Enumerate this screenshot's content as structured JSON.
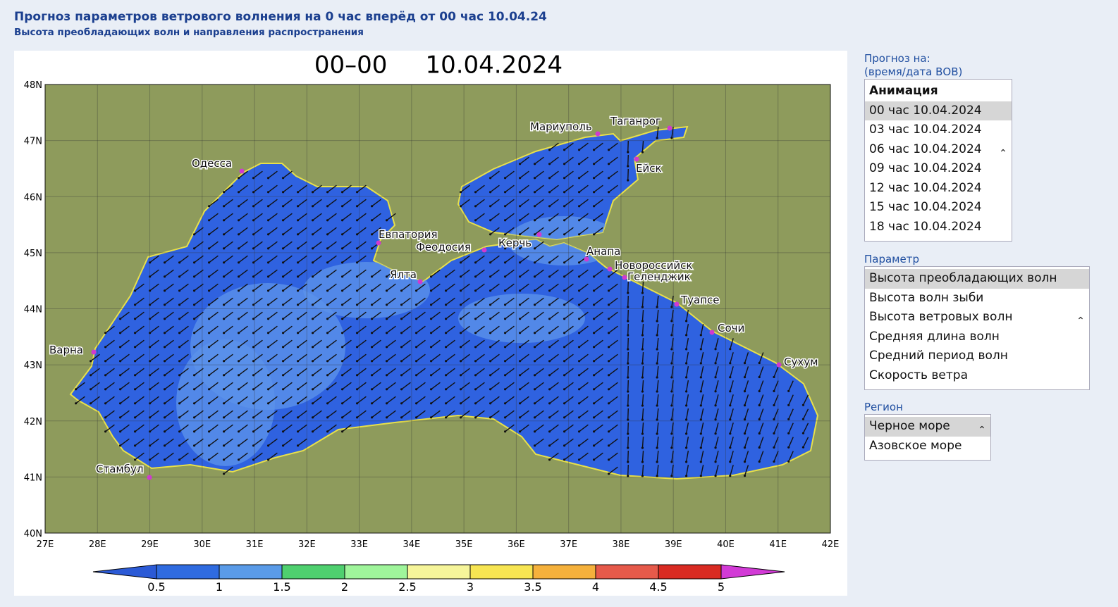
{
  "header": {
    "title": "Прогноз параметров ветрового волнения на 0 час вперёд от 00 час 10.04.24",
    "subtitle": "Высота преобладающих волн и направления распространения"
  },
  "map": {
    "title": "00–00     10.04.2024",
    "lat_labels": [
      "48N",
      "47N",
      "46N",
      "45N",
      "44N",
      "43N",
      "42N",
      "41N",
      "40N"
    ],
    "lon_labels": [
      "27E",
      "28E",
      "29E",
      "30E",
      "31E",
      "32E",
      "33E",
      "34E",
      "35E",
      "36E",
      "37E",
      "38E",
      "39E",
      "40E",
      "41E",
      "42E"
    ],
    "cities": [
      "Одесса",
      "Евпатория",
      "Феодосия",
      "Керчь",
      "Ялта",
      "Мариуполь",
      "Таганрог",
      "Ейск",
      "Анапа",
      "Новороссийск",
      "Геленджик",
      "Туапсе",
      "Сочи",
      "Сухум",
      "Варна",
      "Стамбул"
    ],
    "sea_color": "#2f62e0",
    "light_color": "#5b92ea",
    "land_color": "#8e9b5c"
  },
  "colorbar": {
    "labels": [
      0.5,
      1,
      1.5,
      2,
      2.5,
      3,
      3.5,
      4,
      4.5,
      5
    ],
    "colors": [
      "#2b5ad6",
      "#2f6be0",
      "#5a9be8",
      "#4fd06f",
      "#9ff59b",
      "#f6f59a",
      "#f7e552",
      "#f5b13c",
      "#e65a4a",
      "#d92b22",
      "#d23ad6"
    ]
  },
  "panel": {
    "forecast_label": [
      "Прогноз на:",
      "(время/дата ВОВ)"
    ],
    "forecast_options": [
      "Анимация",
      "00 час 10.04.2024",
      "03 час 10.04.2024",
      "06 час 10.04.2024",
      "09 час 10.04.2024",
      "12 час 10.04.2024",
      "15 час 10.04.2024",
      "18 час 10.04.2024"
    ],
    "parameter_label": "Параметр",
    "parameter_options": [
      "Высота преобладающих волн",
      "Высота волн зыби",
      "Высота ветровых волн",
      "Средняя длина волн",
      "Средний период волн",
      "Скорость ветра"
    ],
    "region_label": "Регион",
    "region_options": [
      "Черное море",
      "Азовское море"
    ]
  }
}
